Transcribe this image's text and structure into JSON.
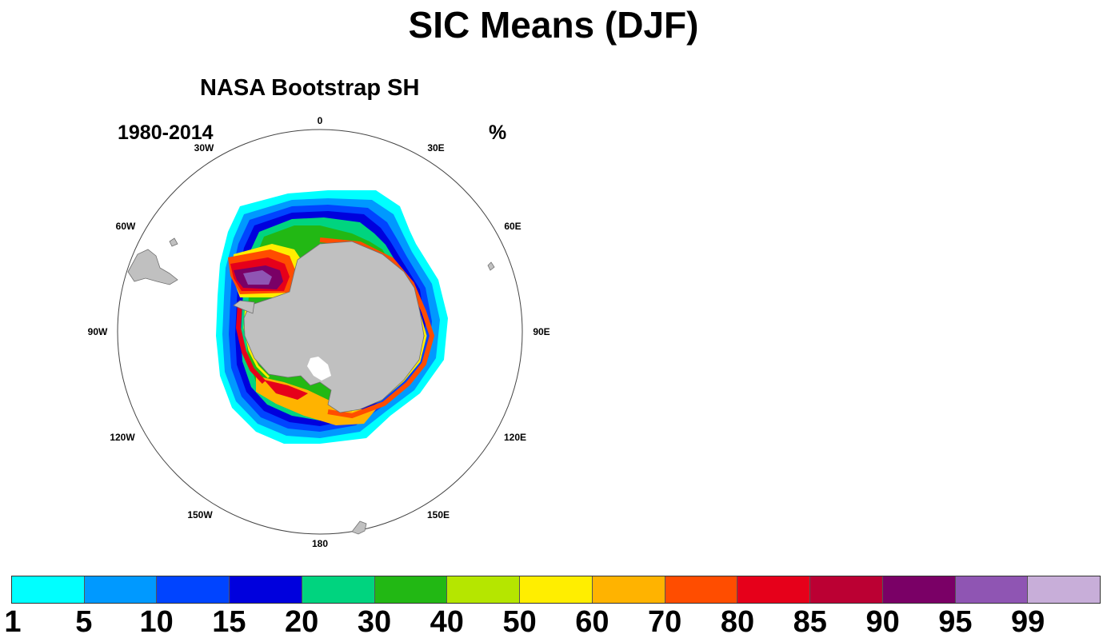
{
  "title": "SIC Means (DJF)",
  "panel": {
    "title": "NASA Bootstrap SH",
    "left_label": "1980-2014",
    "right_label": "%",
    "lon_labels": [
      "0",
      "30E",
      "60E",
      "90E",
      "120E",
      "150E",
      "180",
      "150W",
      "120W",
      "90W",
      "60W",
      "30W"
    ]
  },
  "colorbar": {
    "levels": [
      "1",
      "5",
      "10",
      "15",
      "20",
      "30",
      "40",
      "50",
      "60",
      "70",
      "80",
      "85",
      "90",
      "95",
      "99"
    ],
    "colors": [
      "#00ffff",
      "#0099ff",
      "#0044ff",
      "#0000dd",
      "#00d47f",
      "#22b814",
      "#b5e600",
      "#ffee00",
      "#ffb300",
      "#ff4d00",
      "#e6001a",
      "#bb0033",
      "#7a0066",
      "#8f55b3",
      "#c8aed9"
    ]
  },
  "colors": {
    "land": "#c0c0c0",
    "land_outline": "#707070",
    "background": "#ffffff"
  }
}
